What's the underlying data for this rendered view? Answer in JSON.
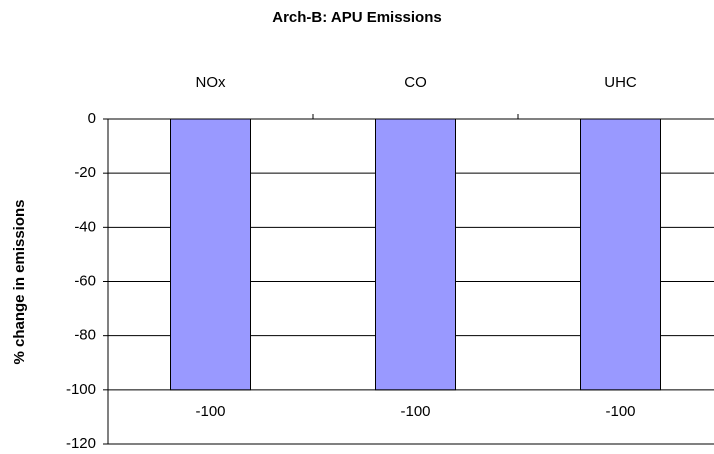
{
  "chart_data": {
    "type": "bar",
    "title": "Arch-B: APU Emissions",
    "y_label": "% change in emissions",
    "categories": [
      "NOx",
      "CO",
      "UHC"
    ],
    "values": [
      -100,
      -100,
      -100
    ],
    "color": "#9999ff",
    "ylim": [
      -120,
      0
    ],
    "yticks": [
      0,
      -20,
      -40,
      -60,
      -80,
      -100,
      -120
    ],
    "grid": true
  }
}
